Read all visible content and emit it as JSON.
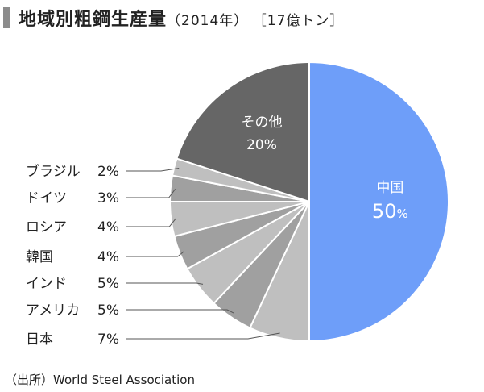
{
  "header": {
    "title": "地域別粗鋼生産量",
    "year": "（2014年）",
    "unit": "［17億トン］"
  },
  "colors": {
    "china": "#6e9ef9",
    "others": "#666666",
    "light": "#bfbfbf",
    "mid": "#a0a0a0",
    "line": "#555555"
  },
  "chart_data": {
    "type": "pie",
    "title": "地域別粗鋼生産量",
    "unit": "17億トン",
    "year": "2014年",
    "slices": [
      {
        "label": "中国",
        "value": 50,
        "display": "50%",
        "color": "#6e9ef9"
      },
      {
        "label": "日本",
        "value": 7,
        "display": "7%",
        "color": "#bfbfbf"
      },
      {
        "label": "アメリカ",
        "value": 5,
        "display": "5%",
        "color": "#a0a0a0"
      },
      {
        "label": "インド",
        "value": 5,
        "display": "5%",
        "color": "#bfbfbf"
      },
      {
        "label": "韓国",
        "value": 4,
        "display": "4%",
        "color": "#a0a0a0"
      },
      {
        "label": "ロシア",
        "value": 4,
        "display": "4%",
        "color": "#bfbfbf"
      },
      {
        "label": "ドイツ",
        "value": 3,
        "display": "3%",
        "color": "#a0a0a0"
      },
      {
        "label": "ブラジル",
        "value": 2,
        "display": "2%",
        "color": "#bfbfbf"
      },
      {
        "label": "その他",
        "value": 20,
        "display": "20%",
        "color": "#666666"
      }
    ]
  },
  "source": "（出所）World Steel Association"
}
